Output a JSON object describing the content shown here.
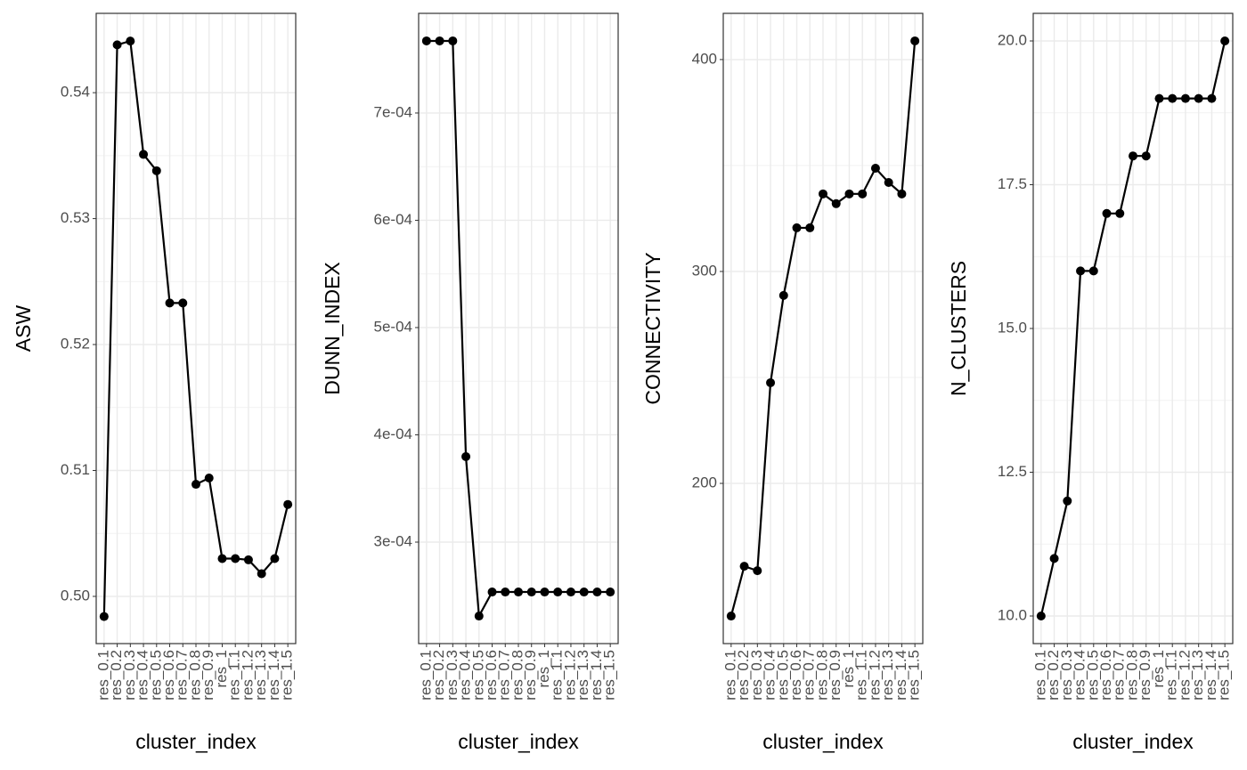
{
  "chart_data": [
    {
      "type": "line",
      "xlabel": "cluster_index",
      "ylabel": "ASW",
      "color": "#000000",
      "grid": true,
      "categories": [
        "res_0.1",
        "res_0.2",
        "res_0.3",
        "res_0.4",
        "res_0.5",
        "res_0.6",
        "res_0.7",
        "res_0.8",
        "res_0.9",
        "res_1",
        "res_1.1",
        "res_1.2",
        "res_1.3",
        "res_1.4",
        "res_1.5"
      ],
      "values": [
        0.4984,
        0.5438,
        0.5441,
        0.5351,
        0.5338,
        0.5233,
        0.5233,
        0.5089,
        0.5094,
        0.503,
        0.503,
        0.5029,
        0.5018,
        0.503,
        0.5073
      ],
      "ylim": [
        0.49625,
        0.5463
      ],
      "yticks": [
        {
          "value": 0.5,
          "label": "0.50"
        },
        0.51,
        0.52,
        0.53,
        0.54
      ]
    },
    {
      "type": "line",
      "xlabel": "cluster_index",
      "ylabel": "DUNN_INDEX",
      "color": "#000000",
      "grid": true,
      "categories": [
        "res_0.1",
        "res_0.2",
        "res_0.3",
        "res_0.4",
        "res_0.5",
        "res_0.6",
        "res_0.7",
        "res_0.8",
        "res_0.9",
        "res_1",
        "res_1.1",
        "res_1.2",
        "res_1.3",
        "res_1.4",
        "res_1.5"
      ],
      "values": [
        0.0007672,
        0.0007672,
        0.0007672,
        0.0003797,
        0.0002311,
        0.0002535,
        0.0002535,
        0.0002535,
        0.0002535,
        0.0002535,
        0.0002535,
        0.0002535,
        0.0002535,
        0.0002535,
        0.0002535
      ],
      "ylim": [
        0.0002054,
        0.0007929
      ],
      "yticks": [
        {
          "value": 0.0003,
          "label": "3e-04"
        },
        {
          "value": 0.0004,
          "label": "4e-04"
        },
        {
          "value": 0.0005,
          "label": "5e-04"
        },
        {
          "value": 0.0006,
          "label": "6e-04"
        },
        {
          "value": 0.0007,
          "label": "7e-04"
        }
      ]
    },
    {
      "type": "line",
      "xlabel": "cluster_index",
      "ylabel": "CONNECTIVITY",
      "color": "#000000",
      "grid": true,
      "categories": [
        "res_0.1",
        "res_0.2",
        "res_0.3",
        "res_0.4",
        "res_0.5",
        "res_0.6",
        "res_0.7",
        "res_0.8",
        "res_0.9",
        "res_1",
        "res_1.1",
        "res_1.2",
        "res_1.3",
        "res_1.4",
        "res_1.5"
      ],
      "values": [
        137.4,
        160.9,
        158.8,
        247.5,
        288.7,
        320.6,
        320.6,
        336.6,
        332.0,
        336.6,
        336.6,
        348.7,
        342.0,
        336.6,
        408.8
      ],
      "ylim": [
        124.4,
        421.8
      ],
      "yticks": [
        200,
        300,
        400
      ]
    },
    {
      "type": "line",
      "xlabel": "cluster_index",
      "ylabel": "N_CLUSTERS",
      "color": "#000000",
      "grid": true,
      "categories": [
        "res_0.1",
        "res_0.2",
        "res_0.3",
        "res_0.4",
        "res_0.5",
        "res_0.6",
        "res_0.7",
        "res_0.8",
        "res_0.9",
        "res_1",
        "res_1.1",
        "res_1.2",
        "res_1.3",
        "res_1.4",
        "res_1.5"
      ],
      "values": [
        10,
        11,
        12,
        16,
        16,
        17,
        17,
        18,
        18,
        19,
        19,
        19,
        19,
        19,
        20
      ],
      "ylim": [
        9.52,
        20.48
      ],
      "yticks": [
        {
          "value": 10,
          "label": "10.0"
        },
        12.5,
        {
          "value": 15,
          "label": "15.0"
        },
        17.5,
        {
          "value": 20,
          "label": "20.0"
        }
      ]
    }
  ]
}
